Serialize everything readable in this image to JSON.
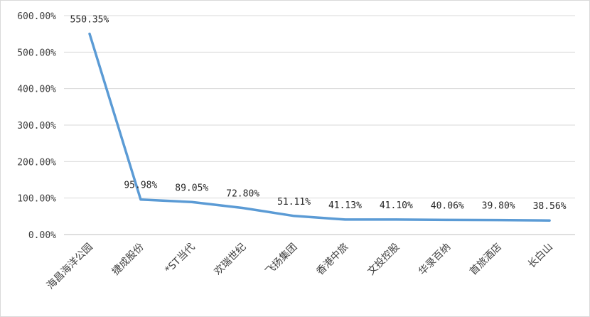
{
  "chart_data": {
    "type": "line",
    "categories": [
      "海昌海洋公园",
      "捷成股份",
      "*ST当代",
      "欢瑞世纪",
      "飞扬集团",
      "香港中旅",
      "文投控股",
      "华录百纳",
      "首旅酒店",
      "长白山"
    ],
    "series": [
      {
        "values": [
          550.35,
          95.98,
          89.05,
          72.8,
          51.11,
          41.13,
          41.1,
          40.06,
          39.8,
          38.56
        ],
        "labels": [
          "550.35%",
          "95.98%",
          "89.05%",
          "72.80%",
          "51.11%",
          "41.13%",
          "41.10%",
          "40.06%",
          "39.80%",
          "38.56%"
        ],
        "color": "#5b9bd5"
      }
    ],
    "ylim": [
      0,
      600
    ],
    "yticks": [
      0,
      100,
      200,
      300,
      400,
      500,
      600
    ],
    "ytick_labels": [
      "0.00%",
      "100.00%",
      "200.00%",
      "300.00%",
      "400.00%",
      "500.00%",
      "600.00%"
    ],
    "grid": true,
    "legend": "none",
    "gridline_color": "#d9d9d9",
    "axis_color": "#bfbfbf"
  }
}
